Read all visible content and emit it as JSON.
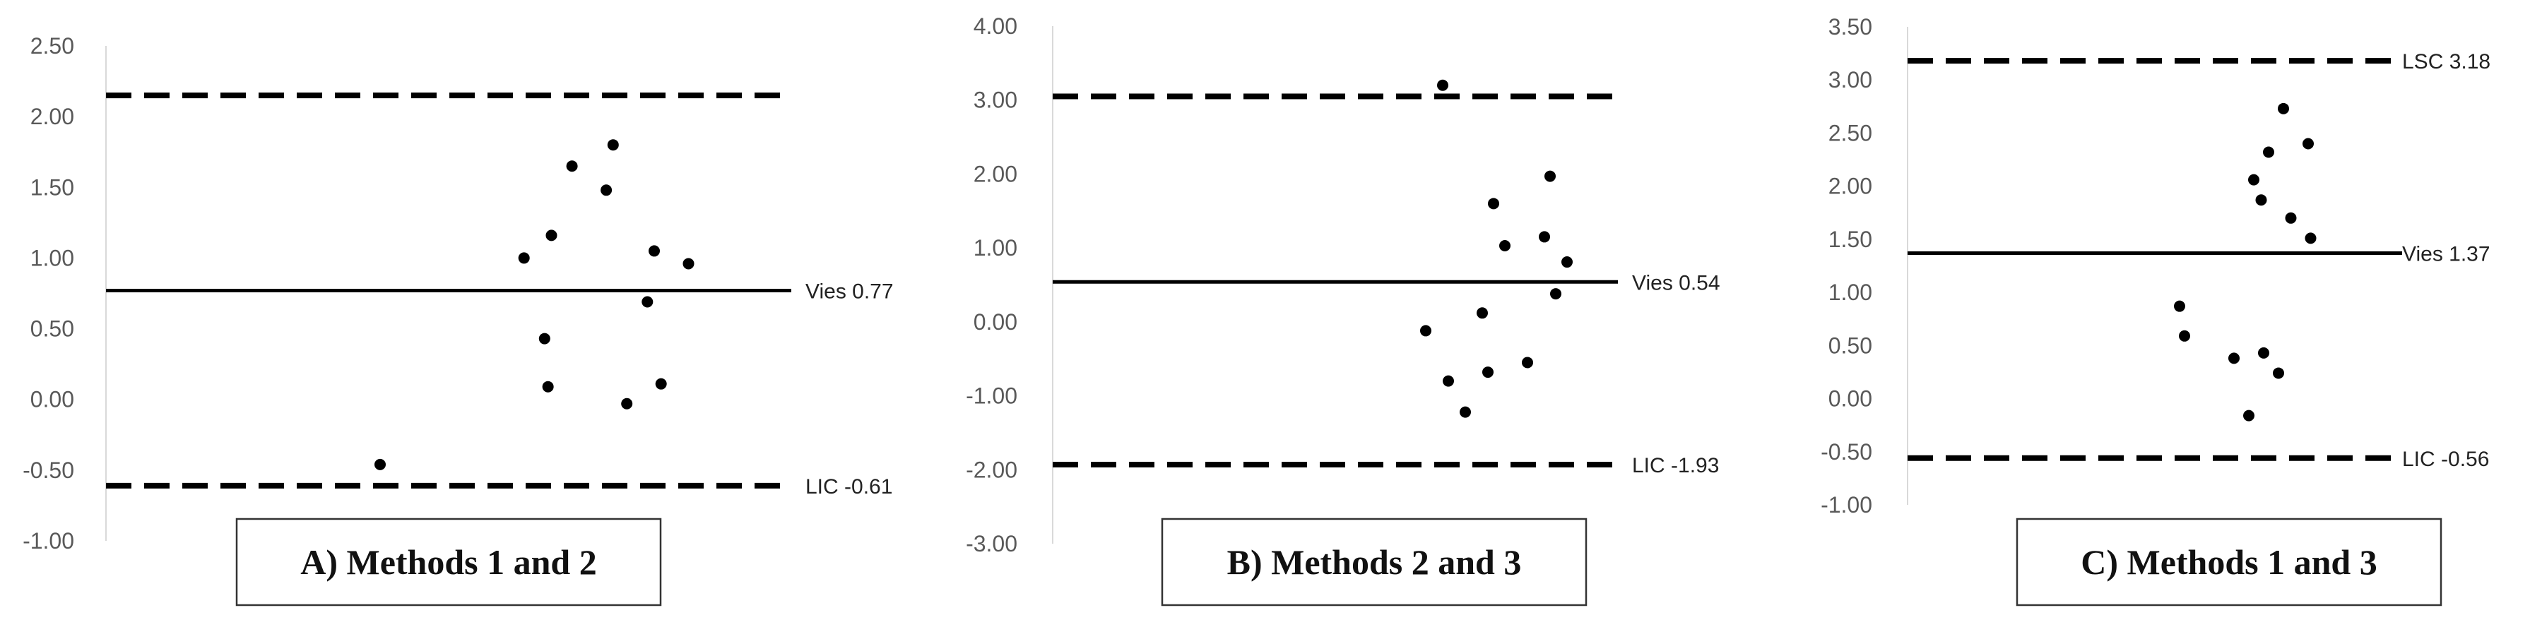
{
  "chart_data": [
    {
      "type": "scatter",
      "caption": "A) Methods 1 and 2",
      "ylim": [
        -1.0,
        2.5
      ],
      "yticks": [
        "2.50",
        "2.00",
        "1.50",
        "1.00",
        "0.50",
        "0.00",
        "-0.50",
        "-1.00"
      ],
      "points": [
        {
          "x": 0.4,
          "y": -0.46
        },
        {
          "x": 0.61,
          "y": 1.0
        },
        {
          "x": 0.64,
          "y": 0.43
        },
        {
          "x": 0.645,
          "y": 0.09
        },
        {
          "x": 0.65,
          "y": 1.16
        },
        {
          "x": 0.68,
          "y": 1.65
        },
        {
          "x": 0.73,
          "y": 1.48
        },
        {
          "x": 0.74,
          "y": 1.8
        },
        {
          "x": 0.76,
          "y": -0.03
        },
        {
          "x": 0.79,
          "y": 0.69
        },
        {
          "x": 0.8,
          "y": 1.05
        },
        {
          "x": 0.81,
          "y": 0.11
        },
        {
          "x": 0.85,
          "y": 0.96
        }
      ],
      "lines": [
        {
          "kind": "upper",
          "y": 2.15,
          "style": "dashed",
          "label": ""
        },
        {
          "kind": "bias",
          "y": 0.77,
          "style": "solid",
          "label": "Vies 0.77"
        },
        {
          "kind": "lower",
          "y": -0.61,
          "style": "dashed",
          "label": "LIC -0.61"
        }
      ]
    },
    {
      "type": "scatter",
      "caption": "B) Methods 2 and 3",
      "ylim": [
        -3.0,
        4.0
      ],
      "yticks": [
        "4.00",
        "3.00",
        "2.00",
        "1.00",
        "0.00",
        "-1.00",
        "-2.00",
        "-3.00"
      ],
      "points": [
        {
          "x": 0.69,
          "y": 3.2
        },
        {
          "x": 0.66,
          "y": -0.12
        },
        {
          "x": 0.7,
          "y": -0.8
        },
        {
          "x": 0.73,
          "y": -1.22
        },
        {
          "x": 0.76,
          "y": 0.12
        },
        {
          "x": 0.77,
          "y": -0.68
        },
        {
          "x": 0.78,
          "y": 1.6
        },
        {
          "x": 0.8,
          "y": 1.03
        },
        {
          "x": 0.84,
          "y": -0.55
        },
        {
          "x": 0.87,
          "y": 1.15
        },
        {
          "x": 0.88,
          "y": 1.97
        },
        {
          "x": 0.89,
          "y": 0.38
        },
        {
          "x": 0.91,
          "y": 0.81
        }
      ],
      "lines": [
        {
          "kind": "upper",
          "y": 3.05,
          "style": "dashed",
          "label": ""
        },
        {
          "kind": "bias",
          "y": 0.54,
          "style": "solid",
          "label": "Vies 0.54"
        },
        {
          "kind": "lower",
          "y": -1.93,
          "style": "dashed",
          "label": "LIC -1.93"
        }
      ]
    },
    {
      "type": "scatter",
      "caption": "C) Methods 1 and 3",
      "ylim": [
        -1.0,
        3.5
      ],
      "yticks": [
        "3.50",
        "3.00",
        "2.50",
        "2.00",
        "1.50",
        "1.00",
        "0.50",
        "0.00",
        "-0.50",
        "-1.00"
      ],
      "points": [
        {
          "x": 0.55,
          "y": 0.87
        },
        {
          "x": 0.56,
          "y": 0.59
        },
        {
          "x": 0.66,
          "y": 0.38
        },
        {
          "x": 0.69,
          "y": -0.16
        },
        {
          "x": 0.7,
          "y": 2.06
        },
        {
          "x": 0.715,
          "y": 1.87
        },
        {
          "x": 0.72,
          "y": 0.43
        },
        {
          "x": 0.73,
          "y": 2.32
        },
        {
          "x": 0.75,
          "y": 0.24
        },
        {
          "x": 0.76,
          "y": 2.73
        },
        {
          "x": 0.775,
          "y": 1.7
        },
        {
          "x": 0.81,
          "y": 2.4
        },
        {
          "x": 0.815,
          "y": 1.51
        }
      ],
      "lines": [
        {
          "kind": "upper",
          "y": 3.18,
          "style": "dashed",
          "label": "LSC 3.18"
        },
        {
          "kind": "bias",
          "y": 1.37,
          "style": "solid",
          "label": "Vies 1.37"
        },
        {
          "kind": "lower",
          "y": -0.56,
          "style": "dashed",
          "label": "LIC -0.56"
        }
      ]
    }
  ]
}
